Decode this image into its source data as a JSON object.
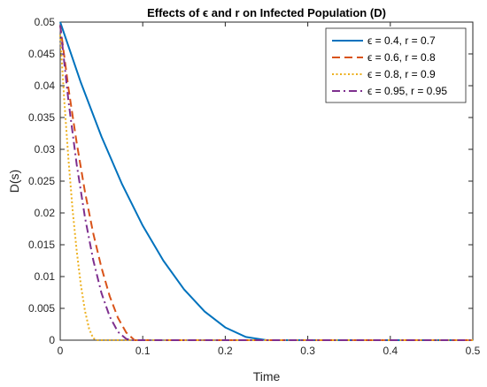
{
  "chart_data": {
    "type": "line",
    "title": "Effects of ϵ and r on Infected Population (D)",
    "xlabel": "Time",
    "ylabel": "D(s)",
    "xlim": [
      0,
      0.5
    ],
    "ylim": [
      0,
      0.05
    ],
    "x_ticks": [
      "0",
      "0.1",
      "0.2",
      "0.3",
      "0.4",
      "0.5"
    ],
    "y_ticks": [
      "0",
      "0.005",
      "0.01",
      "0.015",
      "0.02",
      "0.025",
      "0.03",
      "0.035",
      "0.04",
      "0.045",
      "0.05"
    ],
    "grid": false,
    "legend_position": "top-right",
    "series": [
      {
        "name": "ϵ = 0.4, r = 0.7",
        "color": "#0072BD",
        "style": "solid",
        "x": [
          0,
          0.025,
          0.05,
          0.075,
          0.1,
          0.125,
          0.15,
          0.175,
          0.2,
          0.225,
          0.25,
          0.3,
          0.4,
          0.5
        ],
        "y": [
          0.05,
          0.0405,
          0.032,
          0.0245,
          0.018,
          0.0125,
          0.008,
          0.0045,
          0.002,
          0.0005,
          0,
          0,
          0,
          0
        ]
      },
      {
        "name": "ϵ = 0.6, r = 0.8",
        "color": "#D95319",
        "style": "dashed",
        "x": [
          0,
          0.01,
          0.02,
          0.03,
          0.04,
          0.05,
          0.06,
          0.07,
          0.08,
          0.09,
          0.1,
          0.2,
          0.3,
          0.4,
          0.5
        ],
        "y": [
          0.0495,
          0.0396,
          0.031,
          0.0233,
          0.0168,
          0.0114,
          0.0069,
          0.0035,
          0.0012,
          0,
          0,
          0,
          0,
          0,
          0
        ]
      },
      {
        "name": "ϵ = 0.8, r = 0.9",
        "color": "#EDB120",
        "style": "dotted",
        "x": [
          0,
          0.005,
          0.01,
          0.015,
          0.02,
          0.025,
          0.03,
          0.035,
          0.04,
          0.045,
          0.1,
          0.2,
          0.3,
          0.4,
          0.5
        ],
        "y": [
          0.048,
          0.0375,
          0.0284,
          0.0205,
          0.014,
          0.0087,
          0.0046,
          0.0018,
          0.0003,
          0,
          0,
          0,
          0,
          0,
          0
        ]
      },
      {
        "name": "ϵ = 0.95, r = 0.95",
        "color": "#7E2F8E",
        "style": "dashdot",
        "x": [
          0,
          0.01,
          0.02,
          0.03,
          0.04,
          0.05,
          0.06,
          0.07,
          0.08,
          0.088,
          0.1,
          0.2,
          0.3,
          0.4,
          0.5
        ],
        "y": [
          0.0495,
          0.0376,
          0.0276,
          0.0193,
          0.0126,
          0.0074,
          0.0037,
          0.0013,
          0.0002,
          0,
          0,
          0,
          0,
          0,
          0
        ]
      }
    ]
  }
}
